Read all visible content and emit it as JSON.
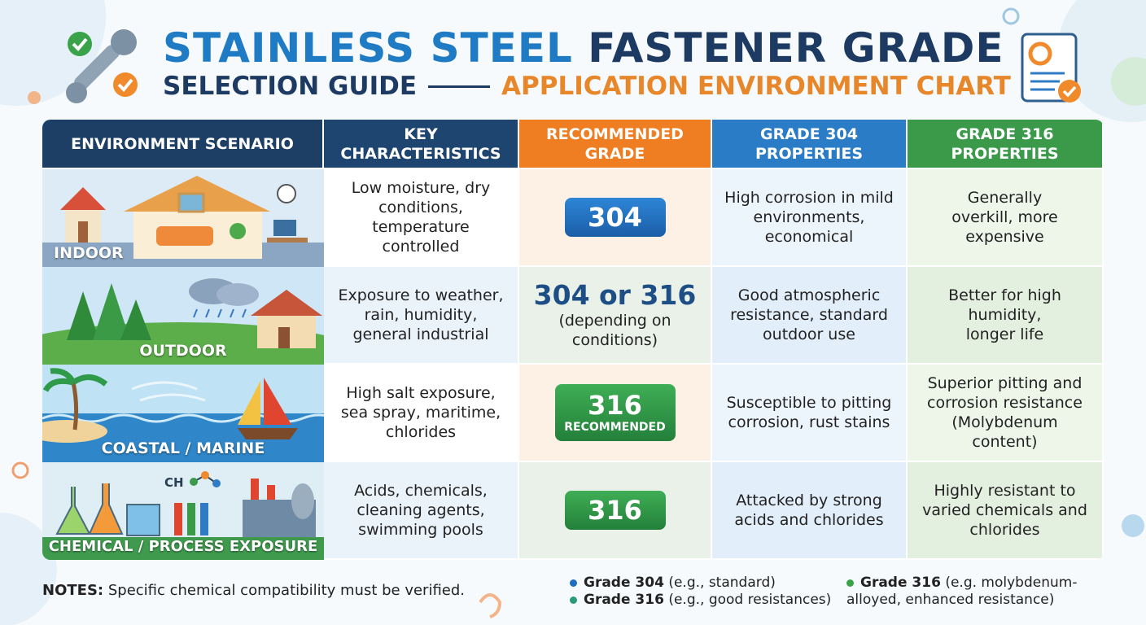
{
  "header": {
    "title_part1": "STAINLESS STEEL",
    "title_part2": "FASTENER GRADE",
    "subtitle_part1": "SELECTION GUIDE",
    "subtitle_part2": "APPLICATION ENVIRONMENT CHART"
  },
  "table": {
    "columns": [
      "ENVIRONMENT SCENARIO",
      "KEY CHARACTERISTICS",
      "RECOMMENDED GRADE",
      "GRADE 304 PROPERTIES",
      "GRADE 316 PROPERTIES"
    ],
    "rows": [
      {
        "scenario": "INDOOR",
        "characteristics": "Low moisture, dry conditions, temperature controlled",
        "grade": "304",
        "grade304": "High corrosion in mild environments, economical",
        "grade316": "Generally overkill, more expensive"
      },
      {
        "scenario": "OUTDOOR",
        "characteristics": "Exposure to weather, rain, humidity, general industrial",
        "grade": "304 or 316",
        "grade_note": "(depending on conditions)",
        "grade304": "Good atmospheric resistance, standard outdoor use",
        "grade316": "Better for high humidity, longer life"
      },
      {
        "scenario": "COASTAL / MARINE",
        "characteristics": "High salt exposure, sea spray, maritime, chlorides",
        "grade": "316",
        "grade_note": "RECOMMENDED",
        "grade304": "Susceptible to pitting corrosion, rust stains",
        "grade316": "Superior pitting and corrosion resistance (Molybdenum content)"
      },
      {
        "scenario": "CHEMICAL / PROCESS EXPOSURE",
        "illustration_text": "CH",
        "characteristics": "Acids, chemicals, cleaning agents, swimming pools",
        "grade": "316",
        "grade304": "Attacked by strong acids and chlorides",
        "grade316": "Highly resistant to varied chemicals and chlorides"
      }
    ]
  },
  "notes": {
    "label": "NOTES:",
    "text": "Specific chemical compatibility must be verified."
  },
  "legend": [
    {
      "label": "Grade 304",
      "text": "(e.g., standard)"
    },
    {
      "label": "Grade 316",
      "text": "(e.g., good resistances)"
    },
    {
      "label": "Grade 316",
      "text": "(e.g. molybdenum-alloyed, enhanced resistance)"
    }
  ]
}
